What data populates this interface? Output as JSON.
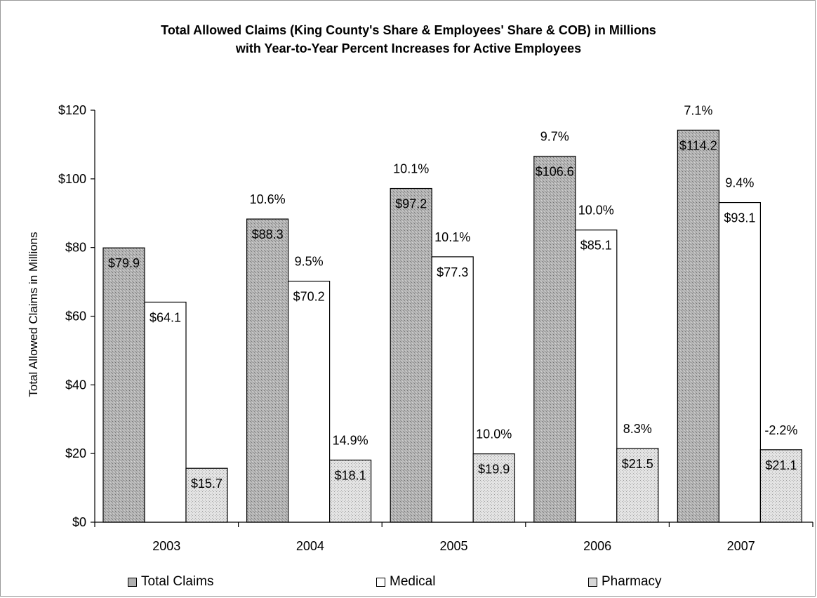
{
  "chart_data": {
    "type": "bar",
    "title": "Total Allowed Claims (King County's Share & Employees' Share & COB) in Millions",
    "subtitle": "with Year-to-Year Percent Increases for Active Employees",
    "xlabel": "",
    "ylabel": "Total Allowed Claims in Millions",
    "ylim": [
      0,
      120
    ],
    "yticks": [
      "$0",
      "$20",
      "$40",
      "$60",
      "$80",
      "$100",
      "$120"
    ],
    "categories": [
      "2003",
      "2004",
      "2005",
      "2006",
      "2007"
    ],
    "series": [
      {
        "name": "Total Claims",
        "values": [
          79.9,
          88.3,
          97.2,
          106.6,
          114.2
        ],
        "value_labels": [
          "$79.9",
          "$88.3",
          "$97.2",
          "$106.6",
          "$114.2"
        ],
        "pct_labels": [
          "",
          "10.6%",
          "10.1%",
          "9.7%",
          "7.1%"
        ],
        "color": "#b8b8b8"
      },
      {
        "name": "Medical",
        "values": [
          64.1,
          70.2,
          77.3,
          85.1,
          93.1
        ],
        "value_labels": [
          "$64.1",
          "$70.2",
          "$77.3",
          "$85.1",
          "$93.1"
        ],
        "pct_labels": [
          "",
          "9.5%",
          "10.1%",
          "10.0%",
          "9.4%"
        ],
        "color": "#ffffff"
      },
      {
        "name": "Pharmacy",
        "values": [
          15.7,
          18.1,
          19.9,
          21.5,
          21.1
        ],
        "value_labels": [
          "$15.7",
          "$18.1",
          "$19.9",
          "$21.5",
          "$21.1"
        ],
        "pct_labels": [
          "",
          "14.9%",
          "10.0%",
          "8.3%",
          "-2.2%"
        ],
        "color": "#dcdcdc"
      }
    ],
    "grid": false,
    "legend_position": "bottom"
  },
  "legend": [
    {
      "label": "Total Claims",
      "color": "#b8b8b8"
    },
    {
      "label": "Medical",
      "color": "#ffffff"
    },
    {
      "label": "Pharmacy",
      "color": "#dcdcdc"
    }
  ]
}
